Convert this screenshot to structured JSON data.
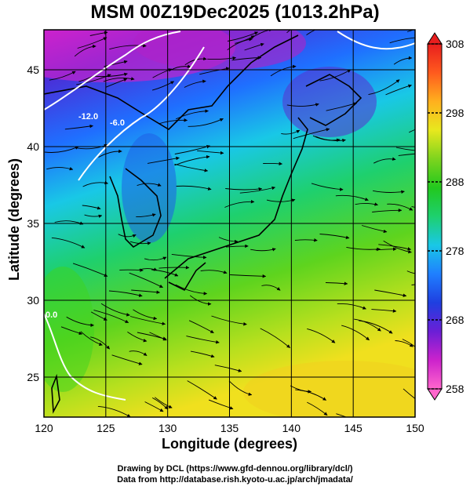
{
  "title": "MSM 00Z19Dec2025 (1013.2hPa)",
  "xlabel": "Longitude (degrees)",
  "ylabel": "Latitude  (degrees)",
  "credits": {
    "line1": "Drawing by DCL (https://www.gfd-dennou.org/library/dcl/)",
    "line2": "Data from http://database.rish.kyoto-u.ac.jp/arch/jmadata/"
  },
  "chart_data": {
    "type": "heatmap",
    "x_range": [
      120,
      150
    ],
    "y_range": [
      22.4,
      47.6
    ],
    "x_ticks": [
      "120",
      "125",
      "130",
      "135",
      "140",
      "145",
      "150"
    ],
    "y_ticks": [
      "25",
      "30",
      "35",
      "40",
      "45"
    ],
    "grid": true,
    "colorbar": {
      "range": [
        258,
        308
      ],
      "ticks": [
        "258",
        "268",
        "278",
        "288",
        "298",
        "308"
      ],
      "colors": [
        "#ff66cc",
        "#cc22cc",
        "#6a1fd6",
        "#1f3fe0",
        "#1f7fff",
        "#19c8e6",
        "#1ed06e",
        "#22c81e",
        "#7ed41e",
        "#e8e81e",
        "#ffb01e",
        "#ff5a1e",
        "#e81e1e"
      ]
    },
    "contour_labels": [
      "-12.0",
      "-6.0",
      "0.0"
    ]
  }
}
